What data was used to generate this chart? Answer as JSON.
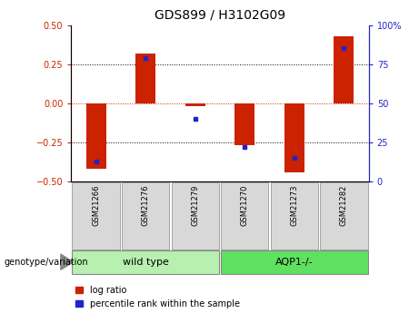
{
  "title": "GDS899 / H3102G09",
  "samples": [
    "GSM21266",
    "GSM21276",
    "GSM21279",
    "GSM21270",
    "GSM21273",
    "GSM21282"
  ],
  "log_ratio": [
    -0.42,
    0.32,
    -0.02,
    -0.27,
    -0.44,
    0.43
  ],
  "percentile_rank": [
    13,
    79,
    40,
    22,
    15,
    85
  ],
  "bar_color_red": "#CC2200",
  "dot_color_blue": "#2222CC",
  "ylim_left": [
    -0.5,
    0.5
  ],
  "ylim_right": [
    0,
    100
  ],
  "yticks_left": [
    -0.5,
    -0.25,
    0,
    0.25,
    0.5
  ],
  "yticks_right": [
    0,
    25,
    50,
    75,
    100
  ],
  "hline_dotted_values": [
    -0.25,
    0.25
  ],
  "legend_items": [
    "log ratio",
    "percentile rank within the sample"
  ],
  "genotype_label": "genotype/variation",
  "group_labels": [
    "wild type",
    "AQP1-/-"
  ],
  "group_color_wt": "#b8f0b0",
  "group_color_aqp": "#60e060",
  "label_box_color": "#d8d8d8",
  "bar_width": 0.4
}
